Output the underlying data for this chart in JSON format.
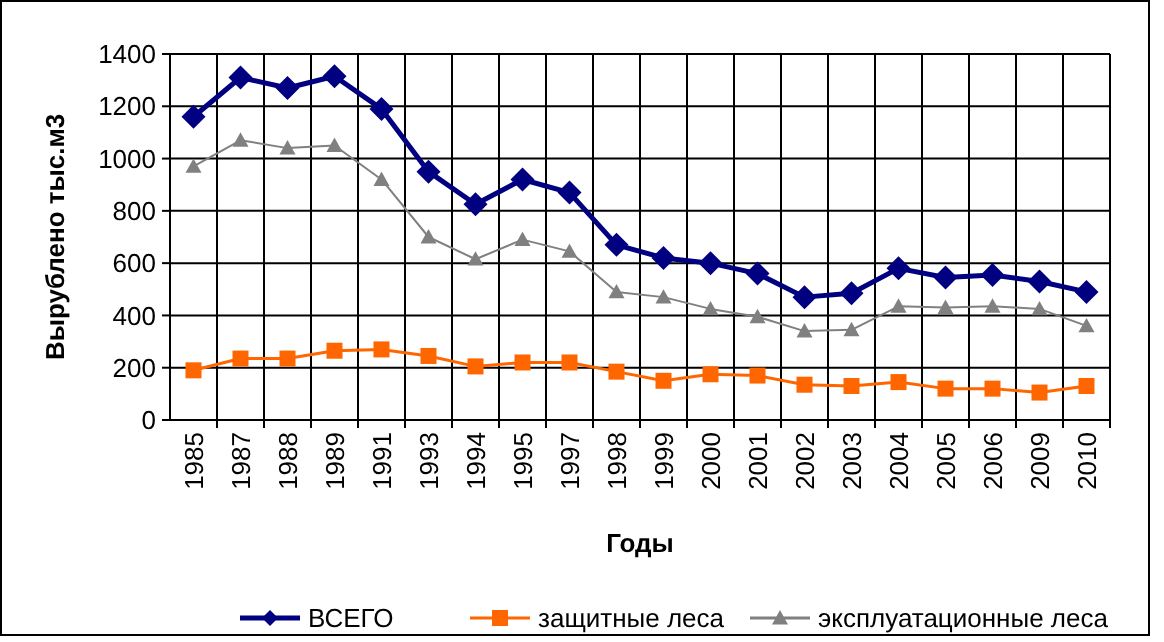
{
  "chart_data": {
    "type": "line",
    "xlabel": "Годы",
    "ylabel": "Вырублено тыс.м3",
    "categories": [
      "1985",
      "1987",
      "1988",
      "1989",
      "1991",
      "1993",
      "1994",
      "1995",
      "1997",
      "1998",
      "1999",
      "2000",
      "2001",
      "2002",
      "2003",
      "2004",
      "2005",
      "2006",
      "2009",
      "2010"
    ],
    "ylim": [
      0,
      1400
    ],
    "yticks": [
      0,
      200,
      400,
      600,
      800,
      1000,
      1200,
      1400
    ],
    "grid": true,
    "legend": "bottom",
    "series": [
      {
        "name": "ВСЕГО",
        "color": "#000080",
        "marker": "diamond",
        "values": [
          1160,
          1310,
          1270,
          1315,
          1190,
          950,
          825,
          920,
          870,
          670,
          620,
          600,
          560,
          470,
          485,
          580,
          545,
          555,
          530,
          490
        ]
      },
      {
        "name": "защитные леса",
        "color": "#ff6600",
        "marker": "square",
        "values": [
          190,
          235,
          235,
          265,
          270,
          245,
          205,
          220,
          220,
          185,
          150,
          175,
          170,
          135,
          130,
          145,
          120,
          120,
          105,
          130
        ]
      },
      {
        "name": "эксплуатационные леса",
        "color": "#808080",
        "marker": "triangle",
        "values": [
          970,
          1070,
          1040,
          1050,
          920,
          700,
          615,
          690,
          645,
          490,
          470,
          425,
          395,
          340,
          345,
          435,
          430,
          435,
          425,
          360
        ]
      }
    ]
  }
}
